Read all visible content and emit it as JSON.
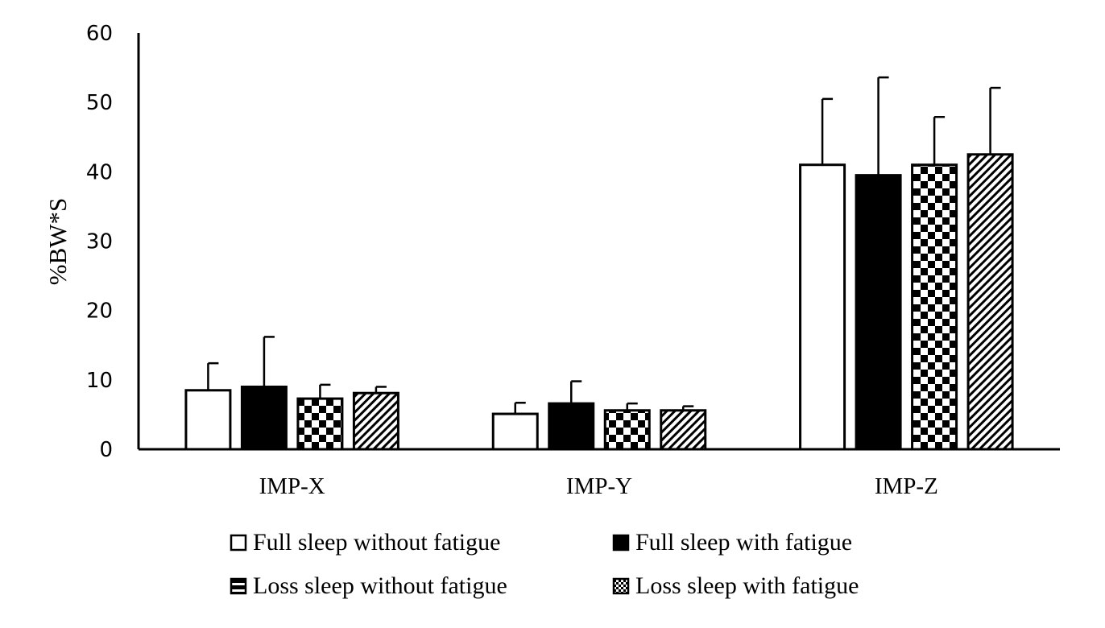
{
  "chart_data": {
    "type": "bar",
    "title": "",
    "xlabel": "",
    "ylabel": "%BW*S",
    "ylim": [
      0,
      60
    ],
    "yticks": [
      "0",
      "10",
      "20",
      "30",
      "40",
      "50",
      "60"
    ],
    "grid": false,
    "legend_position": "bottom",
    "categories": [
      "IMP-X",
      "IMP-Y",
      "IMP-Z"
    ],
    "series": [
      {
        "name": "Full sleep without fatigue",
        "pattern": "white",
        "values": [
          8.5,
          5.1,
          41.0
        ],
        "errors": [
          3.9,
          1.6,
          9.5
        ]
      },
      {
        "name": "Full sleep with fatigue",
        "pattern": "black",
        "values": [
          9.0,
          6.6,
          39.5
        ],
        "errors": [
          7.2,
          3.2,
          14.1
        ]
      },
      {
        "name": "Loss sleep without fatigue",
        "pattern": "checker",
        "values": [
          7.3,
          5.6,
          41.0
        ],
        "errors": [
          2.0,
          1.0,
          6.9
        ]
      },
      {
        "name": "Loss sleep with fatigue",
        "pattern": "diagonal",
        "values": [
          8.1,
          5.6,
          42.5
        ],
        "errors": [
          0.9,
          0.6,
          9.6
        ]
      }
    ],
    "colors": {
      "axis": "#000000",
      "fill_dark": "#000000",
      "fill_light": "#ffffff"
    }
  }
}
